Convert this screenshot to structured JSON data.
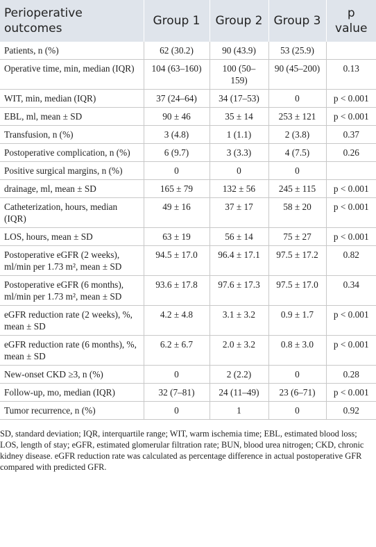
{
  "table": {
    "header": [
      "Perioperative outcomes",
      "Group 1",
      "Group 2",
      "Group 3",
      "p value"
    ],
    "rows": [
      [
        "Patients, n (%)",
        "62 (30.2)",
        "90 (43.9)",
        "53 (25.9)",
        ""
      ],
      [
        "Operative time, min, median (IQR)",
        "104 (63–160)",
        "100 (50–159)",
        "90 (45–200)",
        "0.13"
      ],
      [
        "WIT, min, median (IQR)",
        "37 (24–64)",
        "34 (17–53)",
        "0",
        "p < 0.001"
      ],
      [
        "EBL, ml, mean ± SD",
        "90 ± 46",
        "35 ± 14",
        "253 ± 121",
        "p < 0.001"
      ],
      [
        "Transfusion, n (%)",
        "3 (4.8)",
        "1 (1.1)",
        "2 (3.8)",
        "0.37"
      ],
      [
        "Postoperative complication, n (%)",
        "6 (9.7)",
        "3 (3.3)",
        "4 (7.5)",
        "0.26"
      ],
      [
        "Positive surgical margins, n (%)",
        "0",
        "0",
        "0",
        ""
      ],
      [
        "drainage, ml, mean ± SD",
        "165 ± 79",
        "132 ± 56",
        "245 ± 115",
        "p < 0.001"
      ],
      [
        "Catheterization, hours, median (IQR)",
        "49 ± 16",
        "37 ± 17",
        "58 ± 20",
        "p < 0.001"
      ],
      [
        "LOS, hours, mean ± SD",
        "63 ± 19",
        "56 ± 14",
        "75 ± 27",
        "p < 0.001"
      ],
      [
        "Postoperative eGFR (2 weeks), ml/min per 1.73 m², mean ± SD",
        "94.5 ± 17.0",
        "96.4 ± 17.1",
        "97.5 ± 17.2",
        "0.82"
      ],
      [
        "Postoperative eGFR (6 months), ml/min per 1.73 m², mean ± SD",
        "93.6 ± 17.8",
        "97.6 ± 17.3",
        "97.5 ± 17.0",
        "0.34"
      ],
      [
        "eGFR reduction rate (2 weeks), %, mean ± SD",
        "4.2 ± 4.8",
        "3.1 ± 3.2",
        "0.9 ± 1.7",
        "p < 0.001"
      ],
      [
        "eGFR reduction rate (6 months), %, mean ± SD",
        "6.2 ± 6.7",
        "2.0 ± 3.2",
        "0.8 ± 3.0",
        "p < 0.001"
      ],
      [
        "New-onset CKD ≥3, n (%)",
        "0",
        "2 (2.2)",
        "0",
        "0.28"
      ],
      [
        "Follow-up, mo, median (IQR)",
        "32 (7–81)",
        "24 (11–49)",
        "23 (6–71)",
        "p < 0.001"
      ],
      [
        "Tumor recurrence, n (%)",
        "0",
        "1",
        "0",
        "0.92"
      ]
    ]
  },
  "footnote": "SD, standard deviation; IQR, interquartile range; WIT, warm ischemia time; EBL, estimated blood loss; LOS, length of stay; eGFR, estimated glomerular filtration rate; BUN, blood urea nitrogen; CKD, chronic kidney disease. eGFR reduction rate was calculated as percentage difference in actual postoperative GFR compared with predicted GFR."
}
